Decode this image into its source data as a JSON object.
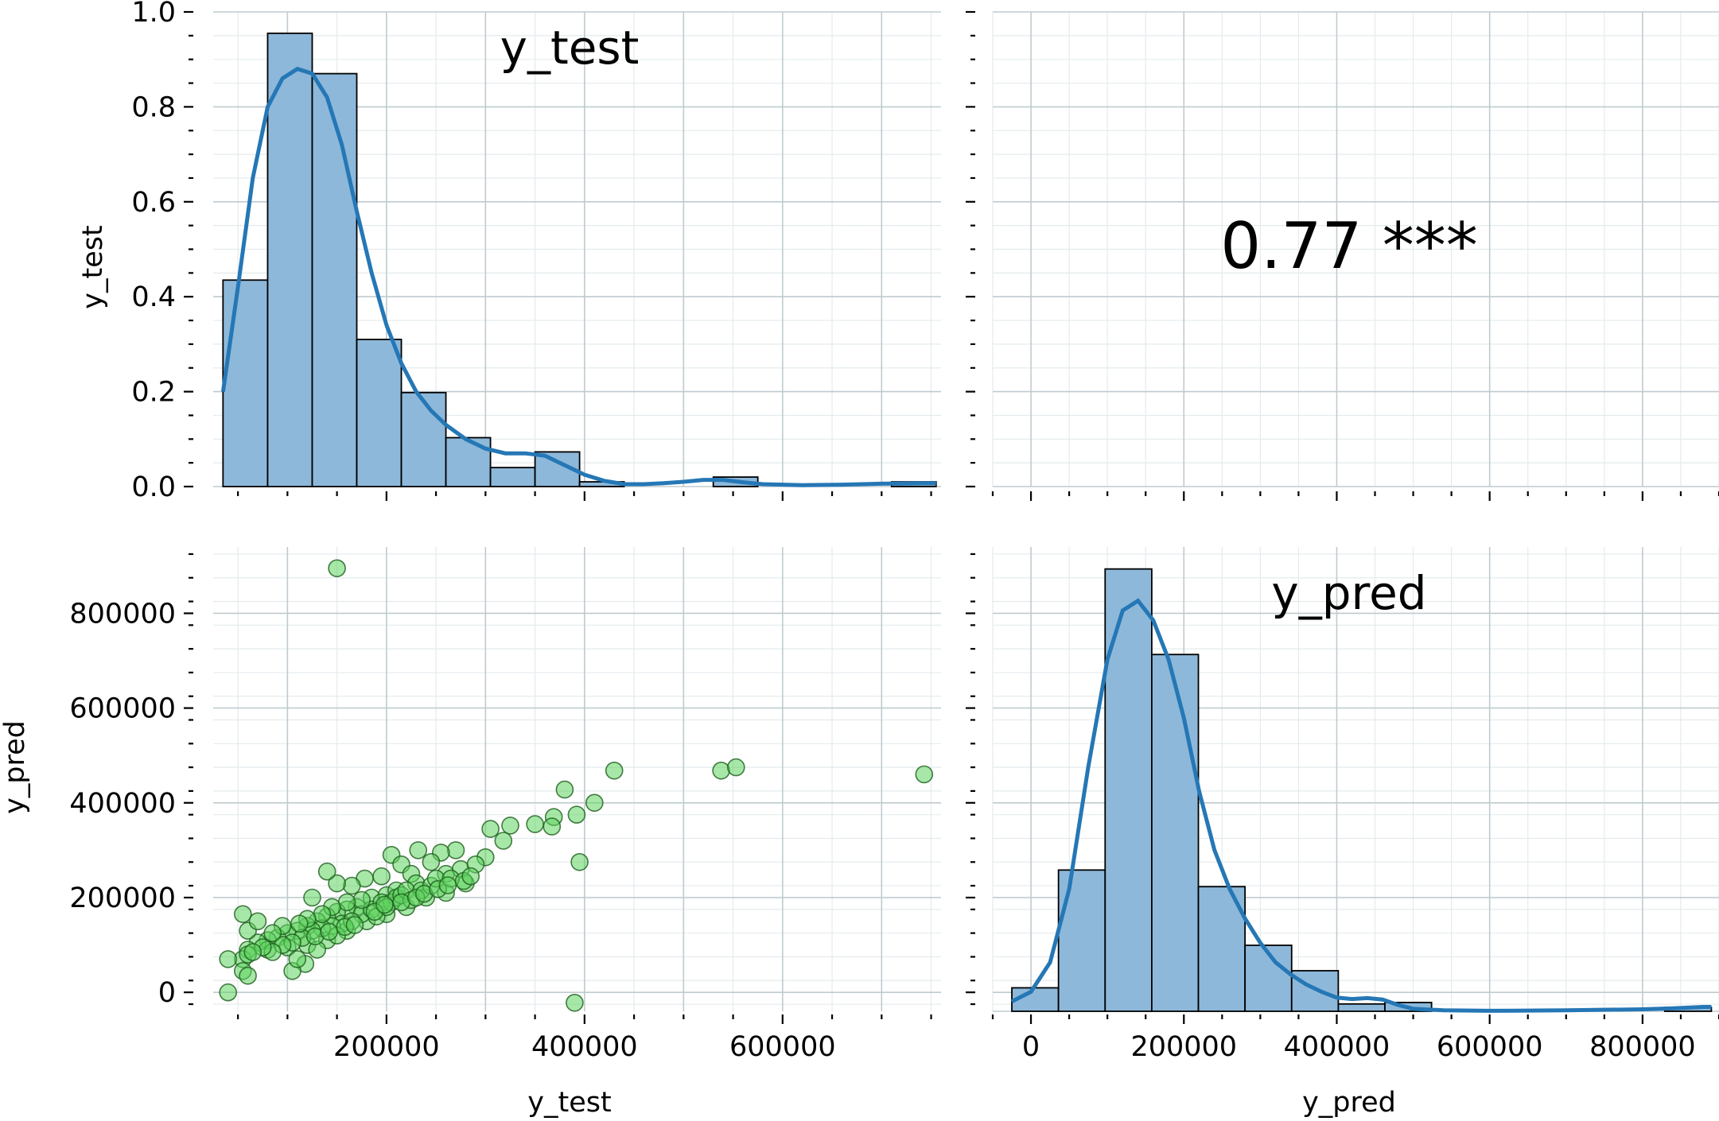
{
  "chart_data": [
    {
      "panel": "top-left",
      "type": "histogram",
      "title": "y_test",
      "ylabel": "y_test",
      "xlim": [
        25000,
        760000
      ],
      "ylim": [
        0,
        1.0
      ],
      "yticks": [
        0.0,
        0.2,
        0.4,
        0.6,
        0.8,
        1.0
      ],
      "ytick_labels": [
        "0.0",
        "0.2",
        "0.4",
        "0.6",
        "0.8",
        "1.0"
      ],
      "xticks": [
        200000,
        400000,
        600000
      ],
      "bins": [
        {
          "x0": 34900,
          "x1": 80000,
          "value": 0.435
        },
        {
          "x0": 80000,
          "x1": 125000,
          "value": 0.955
        },
        {
          "x0": 125000,
          "x1": 170000,
          "value": 0.87
        },
        {
          "x0": 170000,
          "x1": 215000,
          "value": 0.31
        },
        {
          "x0": 215000,
          "x1": 260000,
          "value": 0.198
        },
        {
          "x0": 260000,
          "x1": 305000,
          "value": 0.103
        },
        {
          "x0": 305000,
          "x1": 350000,
          "value": 0.04
        },
        {
          "x0": 350000,
          "x1": 395000,
          "value": 0.073
        },
        {
          "x0": 395000,
          "x1": 440000,
          "value": 0.01
        },
        {
          "x0": 440000,
          "x1": 485000,
          "value": 0.0
        },
        {
          "x0": 485000,
          "x1": 530000,
          "value": 0.0
        },
        {
          "x0": 530000,
          "x1": 575000,
          "value": 0.02
        },
        {
          "x0": 575000,
          "x1": 620000,
          "value": 0.0
        },
        {
          "x0": 620000,
          "x1": 665000,
          "value": 0.0
        },
        {
          "x0": 665000,
          "x1": 710000,
          "value": 0.0
        },
        {
          "x0": 710000,
          "x1": 755000,
          "value": 0.01
        }
      ],
      "kde": [
        [
          35000,
          0.2
        ],
        [
          50000,
          0.42
        ],
        [
          65000,
          0.65
        ],
        [
          80000,
          0.8
        ],
        [
          95000,
          0.86
        ],
        [
          110000,
          0.88
        ],
        [
          125000,
          0.87
        ],
        [
          140000,
          0.82
        ],
        [
          155000,
          0.72
        ],
        [
          170000,
          0.58
        ],
        [
          185000,
          0.45
        ],
        [
          200000,
          0.34
        ],
        [
          215000,
          0.26
        ],
        [
          230000,
          0.2
        ],
        [
          245000,
          0.16
        ],
        [
          260000,
          0.13
        ],
        [
          280000,
          0.1
        ],
        [
          300000,
          0.08
        ],
        [
          320000,
          0.07
        ],
        [
          340000,
          0.07
        ],
        [
          360000,
          0.065
        ],
        [
          380000,
          0.045
        ],
        [
          400000,
          0.025
        ],
        [
          420000,
          0.012
        ],
        [
          440000,
          0.005
        ],
        [
          460000,
          0.005
        ],
        [
          480000,
          0.007
        ],
        [
          500000,
          0.01
        ],
        [
          520000,
          0.014
        ],
        [
          540000,
          0.014
        ],
        [
          560000,
          0.009
        ],
        [
          580000,
          0.005
        ],
        [
          620000,
          0.003
        ],
        [
          660000,
          0.004
        ],
        [
          700000,
          0.006
        ],
        [
          740000,
          0.007
        ],
        [
          755000,
          0.007
        ]
      ]
    },
    {
      "panel": "top-right",
      "type": "annotation",
      "text": "0.77 ***",
      "xlim": [
        -50000,
        900000
      ],
      "xticks": [
        0,
        200000,
        400000,
        600000,
        800000
      ]
    },
    {
      "panel": "bottom-left",
      "type": "scatter",
      "xlabel": "y_test",
      "ylabel": "y_pred",
      "xlim": [
        25000,
        760000
      ],
      "ylim": [
        -40000,
        940000
      ],
      "xticks": [
        200000,
        400000,
        600000
      ],
      "xtick_labels": [
        "200000",
        "400000",
        "600000"
      ],
      "yticks": [
        0,
        200000,
        400000,
        600000,
        800000
      ],
      "ytick_labels": [
        "0",
        "200000",
        "400000",
        "600000",
        "800000"
      ],
      "points": [
        [
          150000,
          895000
        ],
        [
          40000,
          0
        ],
        [
          390000,
          -22000
        ],
        [
          380000,
          428000
        ],
        [
          430000,
          468000
        ],
        [
          538000,
          468000
        ],
        [
          553000,
          475000
        ],
        [
          743000,
          460000
        ],
        [
          410000,
          400000
        ],
        [
          392000,
          375000
        ],
        [
          369000,
          370000
        ],
        [
          367000,
          350000
        ],
        [
          350000,
          355000
        ],
        [
          325000,
          352000
        ],
        [
          305000,
          345000
        ],
        [
          318000,
          320000
        ],
        [
          300000,
          285000
        ],
        [
          395000,
          275000
        ],
        [
          270000,
          300000
        ],
        [
          255000,
          295000
        ],
        [
          232000,
          300000
        ],
        [
          205000,
          290000
        ],
        [
          215000,
          270000
        ],
        [
          245000,
          275000
        ],
        [
          225000,
          250000
        ],
        [
          195000,
          245000
        ],
        [
          178000,
          240000
        ],
        [
          165000,
          225000
        ],
        [
          150000,
          230000
        ],
        [
          140000,
          255000
        ],
        [
          125000,
          200000
        ],
        [
          185000,
          200000
        ],
        [
          200000,
          205000
        ],
        [
          210000,
          215000
        ],
        [
          230000,
          230000
        ],
        [
          260000,
          250000
        ],
        [
          275000,
          260000
        ],
        [
          290000,
          270000
        ],
        [
          170000,
          180000
        ],
        [
          160000,
          175000
        ],
        [
          150000,
          170000
        ],
        [
          140000,
          160000
        ],
        [
          130000,
          150000
        ],
        [
          120000,
          140000
        ],
        [
          110000,
          130000
        ],
        [
          100000,
          125000
        ],
        [
          90000,
          115000
        ],
        [
          80000,
          110000
        ],
        [
          70000,
          105000
        ],
        [
          60000,
          90000
        ],
        [
          55000,
          70000
        ],
        [
          40000,
          70000
        ],
        [
          60000,
          80000
        ],
        [
          80000,
          90000
        ],
        [
          100000,
          95000
        ],
        [
          120000,
          100000
        ],
        [
          140000,
          110000
        ],
        [
          160000,
          130000
        ],
        [
          180000,
          150000
        ],
        [
          200000,
          165000
        ],
        [
          220000,
          180000
        ],
        [
          240000,
          200000
        ],
        [
          260000,
          210000
        ],
        [
          280000,
          230000
        ],
        [
          175000,
          165000
        ],
        [
          185000,
          175000
        ],
        [
          195000,
          190000
        ],
        [
          205000,
          190000
        ],
        [
          210000,
          200000
        ],
        [
          215000,
          205000
        ],
        [
          220000,
          215000
        ],
        [
          235000,
          215000
        ],
        [
          245000,
          225000
        ],
        [
          250000,
          240000
        ],
        [
          265000,
          240000
        ],
        [
          155000,
          145000
        ],
        [
          145000,
          140000
        ],
        [
          135000,
          135000
        ],
        [
          125000,
          130000
        ],
        [
          115000,
          115000
        ],
        [
          105000,
          105000
        ],
        [
          95000,
          100000
        ],
        [
          85000,
          85000
        ],
        [
          75000,
          95000
        ],
        [
          65000,
          85000
        ],
        [
          55000,
          45000
        ],
        [
          60000,
          35000
        ],
        [
          118000,
          60000
        ],
        [
          105000,
          45000
        ],
        [
          110000,
          70000
        ],
        [
          130000,
          90000
        ],
        [
          150000,
          120000
        ],
        [
          165000,
          150000
        ],
        [
          190000,
          160000
        ],
        [
          200000,
          180000
        ],
        [
          225000,
          195000
        ],
        [
          175000,
          195000
        ],
        [
          160000,
          190000
        ],
        [
          145000,
          180000
        ],
        [
          135000,
          165000
        ],
        [
          120000,
          155000
        ],
        [
          95000,
          140000
        ],
        [
          85000,
          125000
        ],
        [
          60000,
          130000
        ],
        [
          55000,
          165000
        ],
        [
          70000,
          150000
        ],
        [
          112000,
          145000
        ],
        [
          128000,
          118000
        ],
        [
          142000,
          128000
        ],
        [
          158000,
          138000
        ],
        [
          168000,
          142000
        ],
        [
          188000,
          170000
        ],
        [
          198000,
          185000
        ],
        [
          215000,
          190000
        ],
        [
          230000,
          200000
        ],
        [
          238000,
          208000
        ],
        [
          252000,
          218000
        ],
        [
          262000,
          226000
        ],
        [
          278000,
          235000
        ],
        [
          285000,
          245000
        ]
      ]
    },
    {
      "panel": "bottom-right",
      "type": "histogram",
      "title": "y_pred",
      "xlabel": "y_pred",
      "xlim": [
        -50000,
        900000
      ],
      "xticks": [
        0,
        200000,
        400000,
        600000,
        800000
      ],
      "xtick_labels": [
        "0",
        "200000",
        "400000",
        "600000",
        "800000"
      ],
      "bins": [
        {
          "x0": -25000,
          "x1": 36000,
          "value": 0.048
        },
        {
          "x0": 36000,
          "x1": 97000,
          "value": 0.289
        },
        {
          "x0": 97000,
          "x1": 158000,
          "value": 0.905
        },
        {
          "x0": 158000,
          "x1": 219000,
          "value": 0.73
        },
        {
          "x0": 219000,
          "x1": 280000,
          "value": 0.255
        },
        {
          "x0": 280000,
          "x1": 341000,
          "value": 0.135
        },
        {
          "x0": 341000,
          "x1": 402000,
          "value": 0.083
        },
        {
          "x0": 402000,
          "x1": 463000,
          "value": 0.015
        },
        {
          "x0": 463000,
          "x1": 524000,
          "value": 0.018
        },
        {
          "x0": 524000,
          "x1": 585000,
          "value": 0.0
        },
        {
          "x0": 585000,
          "x1": 646000,
          "value": 0.0
        },
        {
          "x0": 646000,
          "x1": 707000,
          "value": 0.0
        },
        {
          "x0": 707000,
          "x1": 768000,
          "value": 0.0
        },
        {
          "x0": 768000,
          "x1": 829000,
          "value": 0.0
        },
        {
          "x0": 829000,
          "x1": 890000,
          "value": 0.008
        }
      ],
      "kde": [
        [
          -25000,
          0.02
        ],
        [
          0,
          0.04
        ],
        [
          25000,
          0.1
        ],
        [
          50000,
          0.25
        ],
        [
          75000,
          0.5
        ],
        [
          100000,
          0.72
        ],
        [
          120000,
          0.82
        ],
        [
          140000,
          0.84
        ],
        [
          160000,
          0.8
        ],
        [
          180000,
          0.72
        ],
        [
          200000,
          0.6
        ],
        [
          220000,
          0.45
        ],
        [
          240000,
          0.33
        ],
        [
          260000,
          0.25
        ],
        [
          280000,
          0.19
        ],
        [
          300000,
          0.14
        ],
        [
          320000,
          0.1
        ],
        [
          340000,
          0.075
        ],
        [
          360000,
          0.055
        ],
        [
          380000,
          0.04
        ],
        [
          400000,
          0.028
        ],
        [
          420000,
          0.025
        ],
        [
          440000,
          0.027
        ],
        [
          460000,
          0.024
        ],
        [
          480000,
          0.013
        ],
        [
          500000,
          0.005
        ],
        [
          540000,
          0.002
        ],
        [
          600000,
          0.001
        ],
        [
          700000,
          0.002
        ],
        [
          800000,
          0.004
        ],
        [
          840000,
          0.006
        ],
        [
          880000,
          0.009
        ],
        [
          890000,
          0.009
        ]
      ]
    }
  ]
}
